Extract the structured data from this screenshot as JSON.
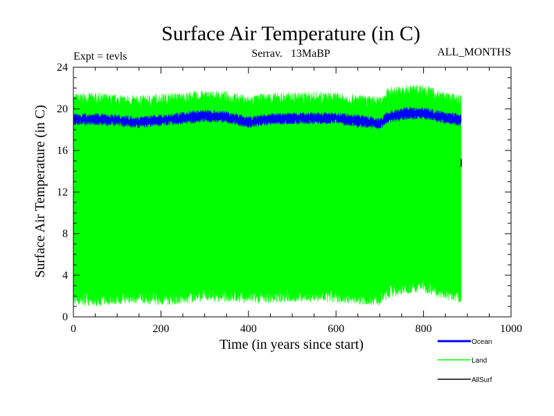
{
  "chart_data": {
    "type": "line",
    "title": "Surface Air Temperature (in C)",
    "subtitle_left": "Expt = tevls",
    "subtitle_center": "Serrav.   13MaBP",
    "subtitle_right": "ALL_MONTHS",
    "xlabel": "Time (in years since start)",
    "ylabel": "Surface Air Temperature (in C)",
    "xlim": [
      0,
      1000
    ],
    "ylim": [
      0,
      24
    ],
    "xticks": [
      0,
      200,
      400,
      600,
      800,
      1000
    ],
    "yticks": [
      0,
      4,
      8,
      12,
      16,
      20,
      24
    ],
    "x_data_end": 886,
    "series": [
      {
        "name": "Land",
        "color": "#00ff00",
        "kind": "band",
        "x": [
          0,
          50,
          100,
          150,
          200,
          250,
          300,
          350,
          400,
          450,
          500,
          550,
          600,
          650,
          700,
          720,
          760,
          800,
          840,
          886
        ],
        "upper": [
          20.8,
          20.9,
          20.7,
          20.6,
          20.8,
          20.9,
          21.1,
          21.0,
          20.6,
          20.9,
          20.9,
          21.0,
          20.9,
          20.7,
          20.5,
          21.4,
          21.6,
          21.7,
          21.0,
          20.7
        ],
        "lower": [
          1.8,
          1.7,
          1.9,
          2.0,
          1.8,
          1.9,
          2.2,
          2.1,
          2.0,
          2.0,
          2.1,
          2.1,
          2.0,
          1.9,
          1.8,
          2.5,
          2.9,
          3.1,
          2.4,
          2.0
        ]
      },
      {
        "name": "Ocean",
        "color": "#0000ff",
        "kind": "band",
        "x": [
          0,
          50,
          100,
          150,
          200,
          250,
          300,
          350,
          400,
          450,
          500,
          550,
          600,
          650,
          700,
          720,
          760,
          800,
          840,
          886
        ],
        "upper": [
          19.3,
          19.3,
          19.2,
          19.0,
          19.2,
          19.4,
          19.7,
          19.5,
          19.0,
          19.3,
          19.4,
          19.4,
          19.4,
          19.2,
          18.9,
          19.5,
          19.9,
          19.9,
          19.5,
          19.3
        ],
        "lower": [
          18.7,
          18.7,
          18.6,
          18.4,
          18.6,
          18.8,
          19.0,
          18.9,
          18.4,
          18.7,
          18.8,
          18.8,
          18.8,
          18.5,
          18.3,
          18.9,
          19.2,
          19.3,
          18.9,
          18.6
        ]
      },
      {
        "name": "AllSurf",
        "color": "#000000",
        "kind": "line",
        "x": [
          886
        ],
        "values": [
          14.8
        ]
      }
    ],
    "legend": [
      {
        "label": "Ocean",
        "color": "#0000ff"
      },
      {
        "label": "Land",
        "color": "#00ff00"
      },
      {
        "label": "AllSurf",
        "color": "#000000"
      }
    ],
    "legend_position": "bottom-right"
  }
}
